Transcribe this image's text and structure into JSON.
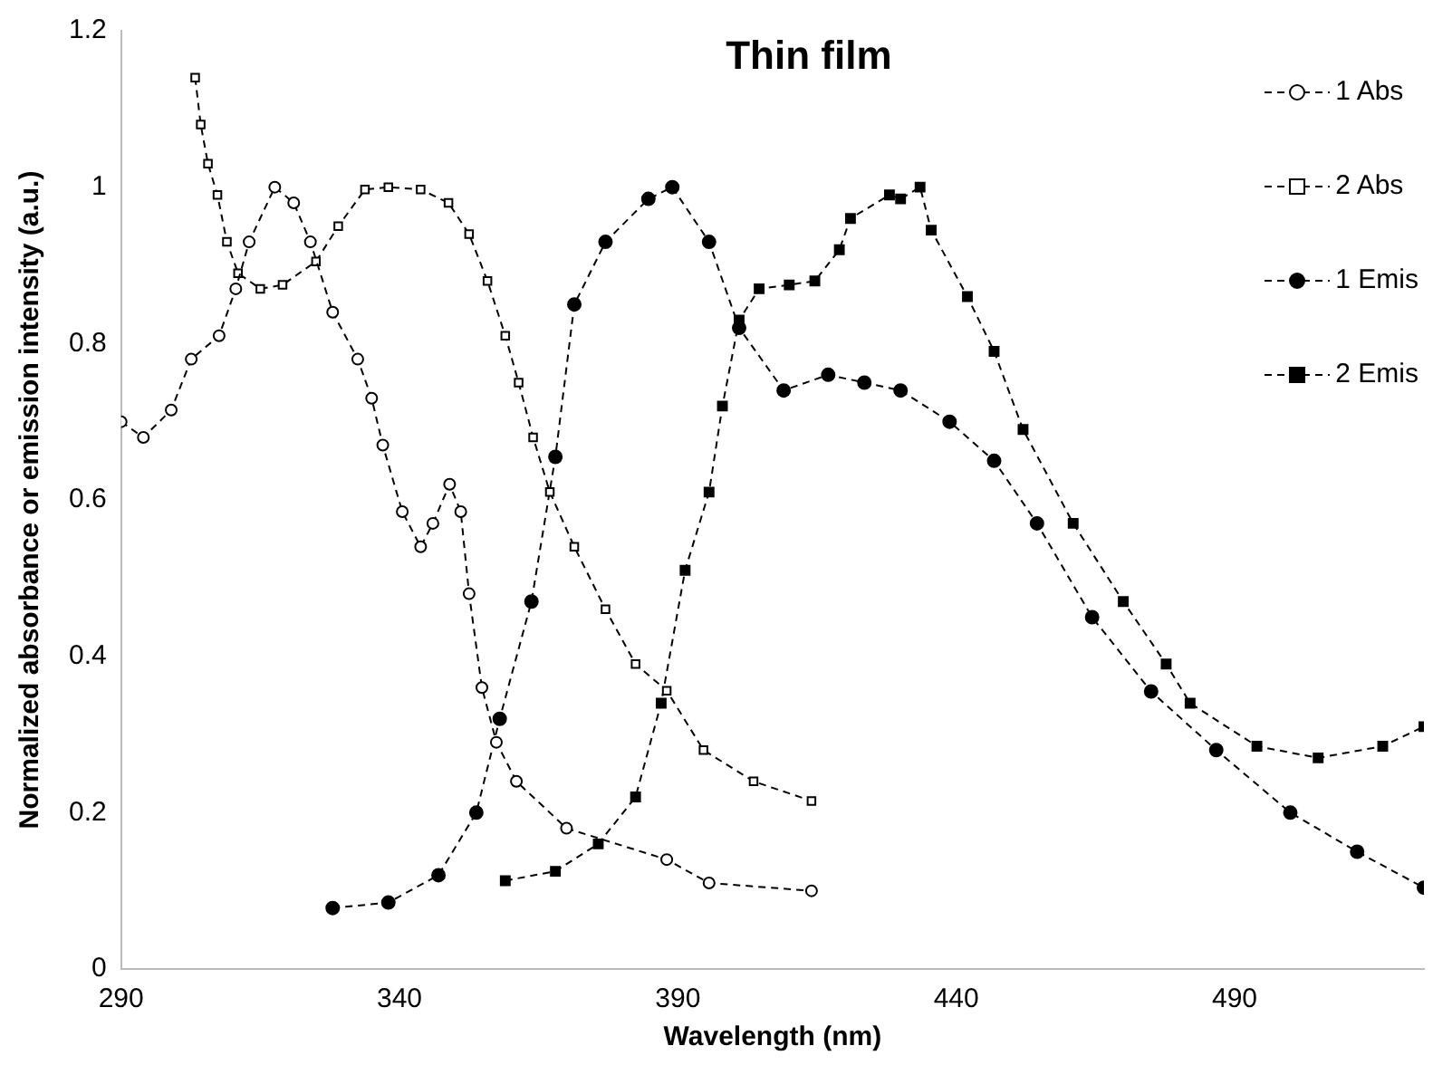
{
  "chart_data": {
    "type": "line",
    "title": "Thin film",
    "xlabel": "Wavelength (nm)",
    "ylabel": "Normalized absorbance or emission intensity (a.u.)",
    "xlim": [
      290,
      524
    ],
    "xticks": [
      290,
      340,
      390,
      440,
      490
    ],
    "ylim": [
      0,
      1.2
    ],
    "yticks": [
      0,
      0.2,
      0.4,
      0.6,
      0.8,
      1,
      1.2
    ],
    "grid": false,
    "legend": "top right",
    "line_style": "dashed",
    "series": [
      {
        "name": "1 Abs",
        "color": "#000000",
        "marker": "circle",
        "x": [
          290,
          294,
          299,
          302.6,
          307.6,
          310.6,
          313,
          317.6,
          321,
          324,
          328,
          332.5,
          335,
          337,
          340.5,
          343.8,
          346,
          349,
          351,
          352.5,
          354.8,
          357.4,
          361,
          370,
          388,
          395.6,
          414
        ],
        "values": [
          0.7,
          0.68,
          0.715,
          0.78,
          0.81,
          0.87,
          0.93,
          1.0,
          0.98,
          0.93,
          0.84,
          0.78,
          0.73,
          0.67,
          0.585,
          0.54,
          0.57,
          0.62,
          0.585,
          0.48,
          0.36,
          0.29,
          0.24,
          0.18,
          0.14,
          0.11,
          0.1
        ]
      },
      {
        "name": "2 Abs",
        "color": "#000000",
        "marker": "square",
        "x": [
          303.3,
          304.3,
          305.6,
          307.3,
          309,
          311,
          315,
          319,
          325,
          329,
          333.8,
          338,
          343.8,
          348.8,
          352.5,
          355.8,
          359,
          361.4,
          364,
          367,
          371.4,
          377,
          382.4,
          388,
          394.6,
          403.6,
          414
        ],
        "values": [
          1.14,
          1.08,
          1.03,
          0.99,
          0.93,
          0.89,
          0.87,
          0.875,
          0.905,
          0.95,
          0.997,
          1.0,
          0.997,
          0.98,
          0.94,
          0.88,
          0.81,
          0.75,
          0.68,
          0.61,
          0.54,
          0.46,
          0.39,
          0.356,
          0.28,
          0.24,
          0.215
        ]
      },
      {
        "name": "1 Emis",
        "color": "#000000",
        "marker": "circle",
        "x": [
          328,
          338,
          347,
          353.8,
          358,
          363.7,
          368,
          371.4,
          377,
          384.7,
          389,
          395.6,
          401,
          409,
          417,
          423.5,
          430,
          438.8,
          446.8,
          454.5,
          464.4,
          475,
          486.7,
          500,
          512,
          524
        ],
        "values": [
          0.078,
          0.085,
          0.12,
          0.2,
          0.32,
          0.47,
          0.655,
          0.85,
          0.93,
          0.985,
          1.0,
          0.93,
          0.82,
          0.74,
          0.76,
          0.75,
          0.74,
          0.7,
          0.65,
          0.57,
          0.45,
          0.355,
          0.28,
          0.2,
          0.15,
          0.104
        ]
      },
      {
        "name": "2 Emis",
        "color": "#000000",
        "marker": "square",
        "x": [
          359,
          368,
          375.7,
          382.4,
          387,
          391.3,
          395.6,
          398,
          401,
          404.6,
          410,
          414.6,
          419,
          421,
          428,
          430,
          433.5,
          435.5,
          442,
          446.8,
          452,
          461,
          470,
          477.7,
          482,
          494,
          505,
          516.6,
          524
        ],
        "values": [
          0.113,
          0.125,
          0.16,
          0.22,
          0.34,
          0.51,
          0.61,
          0.72,
          0.83,
          0.87,
          0.875,
          0.88,
          0.92,
          0.96,
          0.99,
          0.985,
          1.0,
          0.945,
          0.86,
          0.79,
          0.69,
          0.57,
          0.47,
          0.39,
          0.34,
          0.285,
          0.27,
          0.285,
          0.31
        ]
      }
    ]
  }
}
